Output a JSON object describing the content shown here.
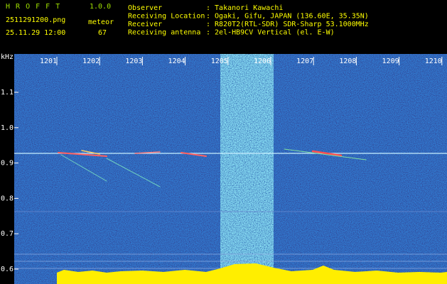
{
  "header": {
    "title": "H R O F F T",
    "version": "1.0.0",
    "filename": "2511291200.png",
    "mode": "meteor",
    "datetime": "25.11.29 12:00",
    "count": "67"
  },
  "info": [
    {
      "label": "Observer",
      "value": ": Takanori Kawachi"
    },
    {
      "label": "Receiving Location",
      "value": ": Ogaki, Gifu, JAPAN (136.60E, 35.35N)"
    },
    {
      "label": "Receiver",
      "value": ": R820T2(RTL-SDR) SDR-Sharp 53.1000MHz"
    },
    {
      "label": "Receiving antenna",
      "value": ": 2el-HB9CV Vertical (el. E-W)"
    }
  ],
  "axis": {
    "unit": "kHz",
    "x_labels": [
      "1201",
      "1202",
      "1203",
      "1204",
      "1205",
      "1206",
      "1207",
      "1208",
      "1209",
      "1210"
    ],
    "y_labels": [
      "1.1",
      "1.0",
      "0.9",
      "0.8",
      "0.7",
      "0.6"
    ]
  }
}
